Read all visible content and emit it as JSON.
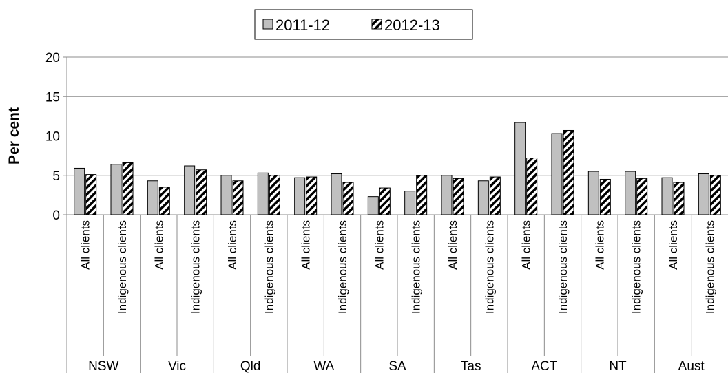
{
  "chart_data": {
    "type": "bar",
    "ylabel": "Per cent",
    "ylim": [
      0,
      20
    ],
    "yticks": [
      0,
      5,
      10,
      15,
      20
    ],
    "grid": true,
    "legend_position": "top-center",
    "groups": [
      {
        "label": "NSW",
        "categories": [
          "All clients",
          "Indigenous clients"
        ]
      },
      {
        "label": "Vic",
        "categories": [
          "All clients",
          "Indigenous clients"
        ]
      },
      {
        "label": "Qld",
        "categories": [
          "All clients",
          "Indigenous clients"
        ]
      },
      {
        "label": "WA",
        "categories": [
          "All clients",
          "Indigenous clients"
        ]
      },
      {
        "label": "SA",
        "categories": [
          "All clients",
          "Indigenous clients"
        ]
      },
      {
        "label": "Tas",
        "categories": [
          "All clients",
          "Indigenous clients"
        ]
      },
      {
        "label": "ACT",
        "categories": [
          "All clients",
          "Indigenous clients"
        ]
      },
      {
        "label": "NT",
        "categories": [
          "All clients",
          "Indigenous clients"
        ]
      },
      {
        "label": "Aust",
        "categories": [
          "All clients",
          "Indigenous clients"
        ]
      }
    ],
    "series": [
      {
        "name": "2011-12",
        "pattern": "solid",
        "color": "#c0c0c0",
        "values": [
          5.9,
          6.4,
          4.3,
          6.2,
          5.0,
          5.3,
          4.7,
          5.2,
          2.3,
          3.0,
          5.0,
          4.3,
          11.7,
          10.3,
          5.5,
          5.5,
          4.7,
          5.2
        ]
      },
      {
        "name": "2012-13",
        "pattern": "diagonal-hatch",
        "color": "#000000",
        "values": [
          5.1,
          6.6,
          3.5,
          5.7,
          4.3,
          5.0,
          4.8,
          4.1,
          3.4,
          5.0,
          4.6,
          4.8,
          7.2,
          10.7,
          4.5,
          4.6,
          4.1,
          5.0
        ]
      }
    ]
  }
}
